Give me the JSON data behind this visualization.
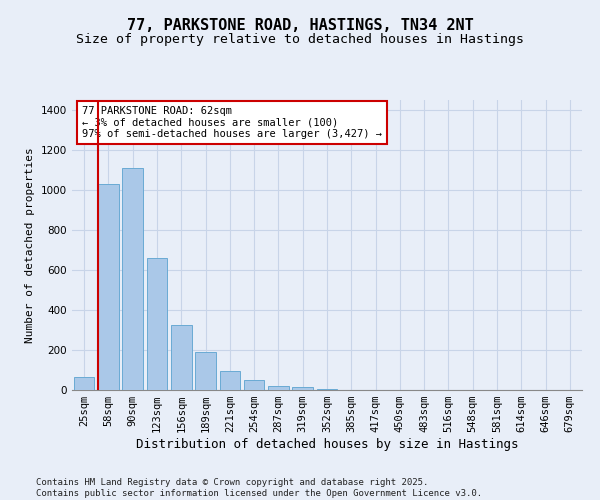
{
  "title": "77, PARKSTONE ROAD, HASTINGS, TN34 2NT",
  "subtitle": "Size of property relative to detached houses in Hastings",
  "xlabel": "Distribution of detached houses by size in Hastings",
  "ylabel": "Number of detached properties",
  "categories": [
    "25sqm",
    "58sqm",
    "90sqm",
    "123sqm",
    "156sqm",
    "189sqm",
    "221sqm",
    "254sqm",
    "287sqm",
    "319sqm",
    "352sqm",
    "385sqm",
    "417sqm",
    "450sqm",
    "483sqm",
    "516sqm",
    "548sqm",
    "581sqm",
    "614sqm",
    "646sqm",
    "679sqm"
  ],
  "values": [
    65,
    1030,
    1110,
    660,
    325,
    190,
    95,
    50,
    22,
    15,
    5,
    0,
    0,
    0,
    0,
    0,
    0,
    0,
    0,
    0,
    0
  ],
  "bar_color": "#aac8e8",
  "bar_edgecolor": "#6aaad4",
  "annotation_text": "77 PARKSTONE ROAD: 62sqm\n← 3% of detached houses are smaller (100)\n97% of semi-detached houses are larger (3,427) →",
  "annotation_box_facecolor": "#ffffff",
  "annotation_box_edgecolor": "#cc0000",
  "vline_color": "#cc0000",
  "footer": "Contains HM Land Registry data © Crown copyright and database right 2025.\nContains public sector information licensed under the Open Government Licence v3.0.",
  "ylim": [
    0,
    1450
  ],
  "yticks": [
    0,
    200,
    400,
    600,
    800,
    1000,
    1200,
    1400
  ],
  "grid_color": "#c8d4e8",
  "bg_color": "#e8eef8",
  "title_fontsize": 11,
  "subtitle_fontsize": 9.5,
  "xlabel_fontsize": 9,
  "ylabel_fontsize": 8,
  "tick_fontsize": 7.5,
  "footer_fontsize": 6.5,
  "annotation_fontsize": 7.5
}
